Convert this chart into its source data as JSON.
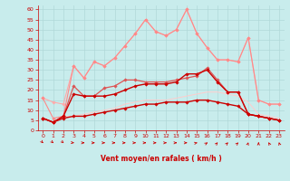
{
  "xlabel": "Vent moyen/en rafales ( km/h )",
  "bg_color": "#c8ecec",
  "grid_color": "#b0d8d8",
  "x": [
    0,
    1,
    2,
    3,
    4,
    5,
    6,
    7,
    8,
    9,
    10,
    11,
    12,
    13,
    14,
    15,
    16,
    17,
    18,
    19,
    20,
    21,
    22,
    23
  ],
  "ylim": [
    0,
    62
  ],
  "yticks": [
    0,
    5,
    10,
    15,
    20,
    25,
    30,
    35,
    40,
    45,
    50,
    55,
    60
  ],
  "line_a": [
    6,
    4,
    6,
    7,
    7,
    8,
    9,
    10,
    11,
    12,
    13,
    13,
    14,
    14,
    14,
    15,
    15,
    14,
    13,
    12,
    8,
    7,
    6,
    5
  ],
  "line_b": [
    6,
    4,
    7,
    18,
    17,
    17,
    17,
    18,
    20,
    22,
    23,
    23,
    23,
    24,
    28,
    28,
    30,
    24,
    19,
    19,
    8,
    7,
    6,
    5
  ],
  "line_c": [
    6,
    4,
    7,
    22,
    17,
    17,
    21,
    22,
    25,
    25,
    24,
    24,
    24,
    25,
    26,
    27,
    31,
    25,
    19,
    19,
    8,
    7,
    6,
    5
  ],
  "line_d": [
    16,
    6,
    7,
    32,
    26,
    34,
    32,
    36,
    42,
    48,
    55,
    49,
    47,
    50,
    60,
    48,
    41,
    35,
    35,
    34,
    46,
    15,
    13,
    13
  ],
  "line_e": [
    16,
    14,
    13,
    32,
    26,
    34,
    32,
    36,
    42,
    48,
    55,
    49,
    47,
    50,
    60,
    48,
    41,
    35,
    35,
    34,
    46,
    15,
    13,
    13
  ],
  "line_f": [
    6,
    4,
    7,
    7,
    8,
    9,
    10,
    11,
    13,
    14,
    15,
    15,
    15,
    16,
    17,
    18,
    19,
    19,
    18,
    17,
    14,
    8,
    7,
    6
  ],
  "c_darkred": "#cc0000",
  "c_medred": "#dd5555",
  "c_lightpink": "#ffaaaa",
  "c_salmonpink": "#ff8888",
  "c_verylightpink": "#ffcccc",
  "arrow_angles": [
    45,
    50,
    50,
    85,
    90,
    90,
    90,
    90,
    90,
    90,
    90,
    90,
    90,
    90,
    90,
    100,
    120,
    135,
    135,
    135,
    160,
    180,
    210,
    200
  ]
}
